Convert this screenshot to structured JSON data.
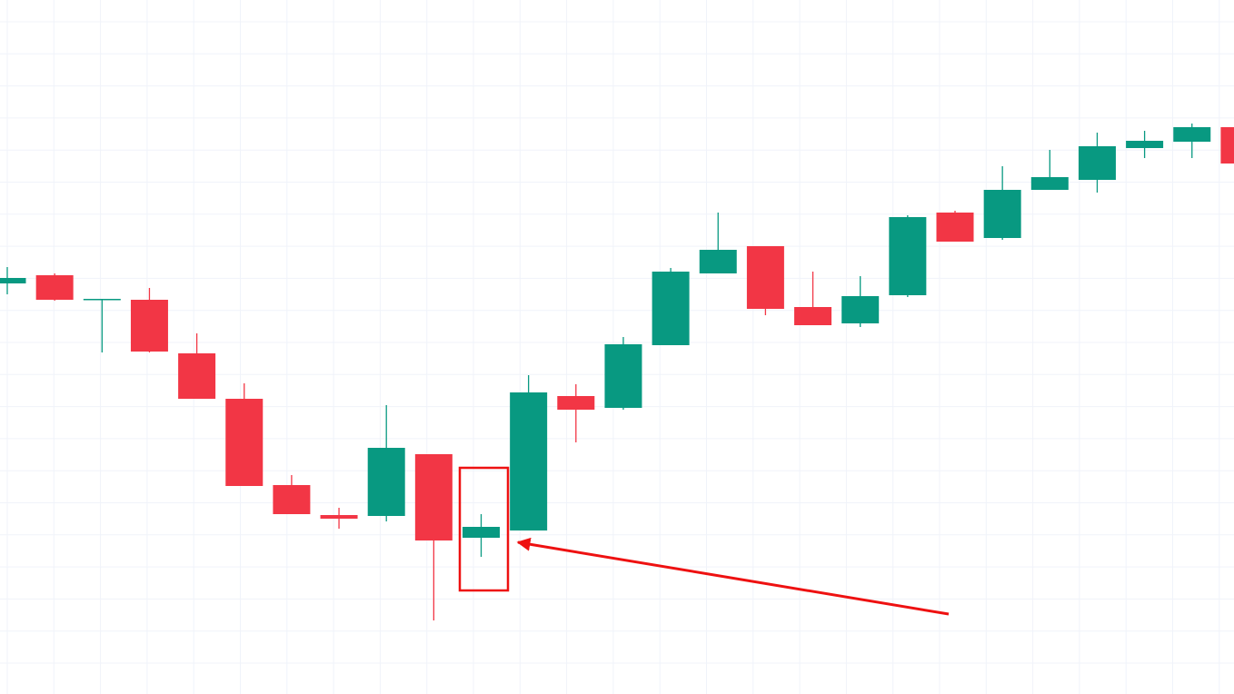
{
  "chart_data": {
    "type": "candlestick",
    "colors": {
      "up": "#089981",
      "down": "#f23645",
      "grid": "#f0f3fa",
      "annotation": "#ee1111",
      "background": "#ffffff"
    },
    "grid": true,
    "ylim": [
      0,
      764
    ],
    "candles": [
      {
        "o": 452,
        "c": 458,
        "h": 470,
        "l": 440
      },
      {
        "o": 461,
        "c": 434,
        "h": 463,
        "l": 433
      },
      {
        "o": 434,
        "c": 435,
        "h": 435,
        "l": 376
      },
      {
        "o": 434,
        "c": 377,
        "h": 447,
        "l": 376
      },
      {
        "o": 375,
        "c": 325,
        "h": 397,
        "l": 325
      },
      {
        "o": 325,
        "c": 229,
        "h": 342,
        "l": 229
      },
      {
        "o": 230,
        "c": 198,
        "h": 241,
        "l": 198
      },
      {
        "o": 197,
        "c": 193,
        "h": 205,
        "l": 182
      },
      {
        "o": 196,
        "c": 271,
        "h": 318,
        "l": 190
      },
      {
        "o": 264,
        "c": 169,
        "h": 264,
        "l": 81
      },
      {
        "o": 172,
        "c": 184,
        "h": 198,
        "l": 151
      },
      {
        "o": 180,
        "c": 332,
        "h": 351,
        "l": 180
      },
      {
        "o": 328,
        "c": 313,
        "h": 341,
        "l": 277
      },
      {
        "o": 315,
        "c": 385,
        "h": 393,
        "l": 313
      },
      {
        "o": 384,
        "c": 465,
        "h": 469,
        "l": 384
      },
      {
        "o": 463,
        "c": 489,
        "h": 530,
        "l": 463
      },
      {
        "o": 493,
        "c": 424,
        "h": 493,
        "l": 417
      },
      {
        "o": 426,
        "c": 406,
        "h": 465,
        "l": 406
      },
      {
        "o": 408,
        "c": 438,
        "h": 460,
        "l": 404
      },
      {
        "o": 439,
        "c": 525,
        "h": 527,
        "l": 437
      },
      {
        "o": 530,
        "c": 498,
        "h": 532,
        "l": 498
      },
      {
        "o": 502,
        "c": 555,
        "h": 581,
        "l": 500
      },
      {
        "o": 555,
        "c": 569,
        "h": 599,
        "l": 555
      },
      {
        "o": 566,
        "c": 603,
        "h": 618,
        "l": 552
      },
      {
        "o": 601,
        "c": 609,
        "h": 620,
        "l": 590
      },
      {
        "o": 608,
        "c": 624,
        "h": 628,
        "l": 590
      },
      {
        "o": 624,
        "c": 584,
        "h": 624,
        "l": 584
      }
    ],
    "highlight_index": 10
  }
}
